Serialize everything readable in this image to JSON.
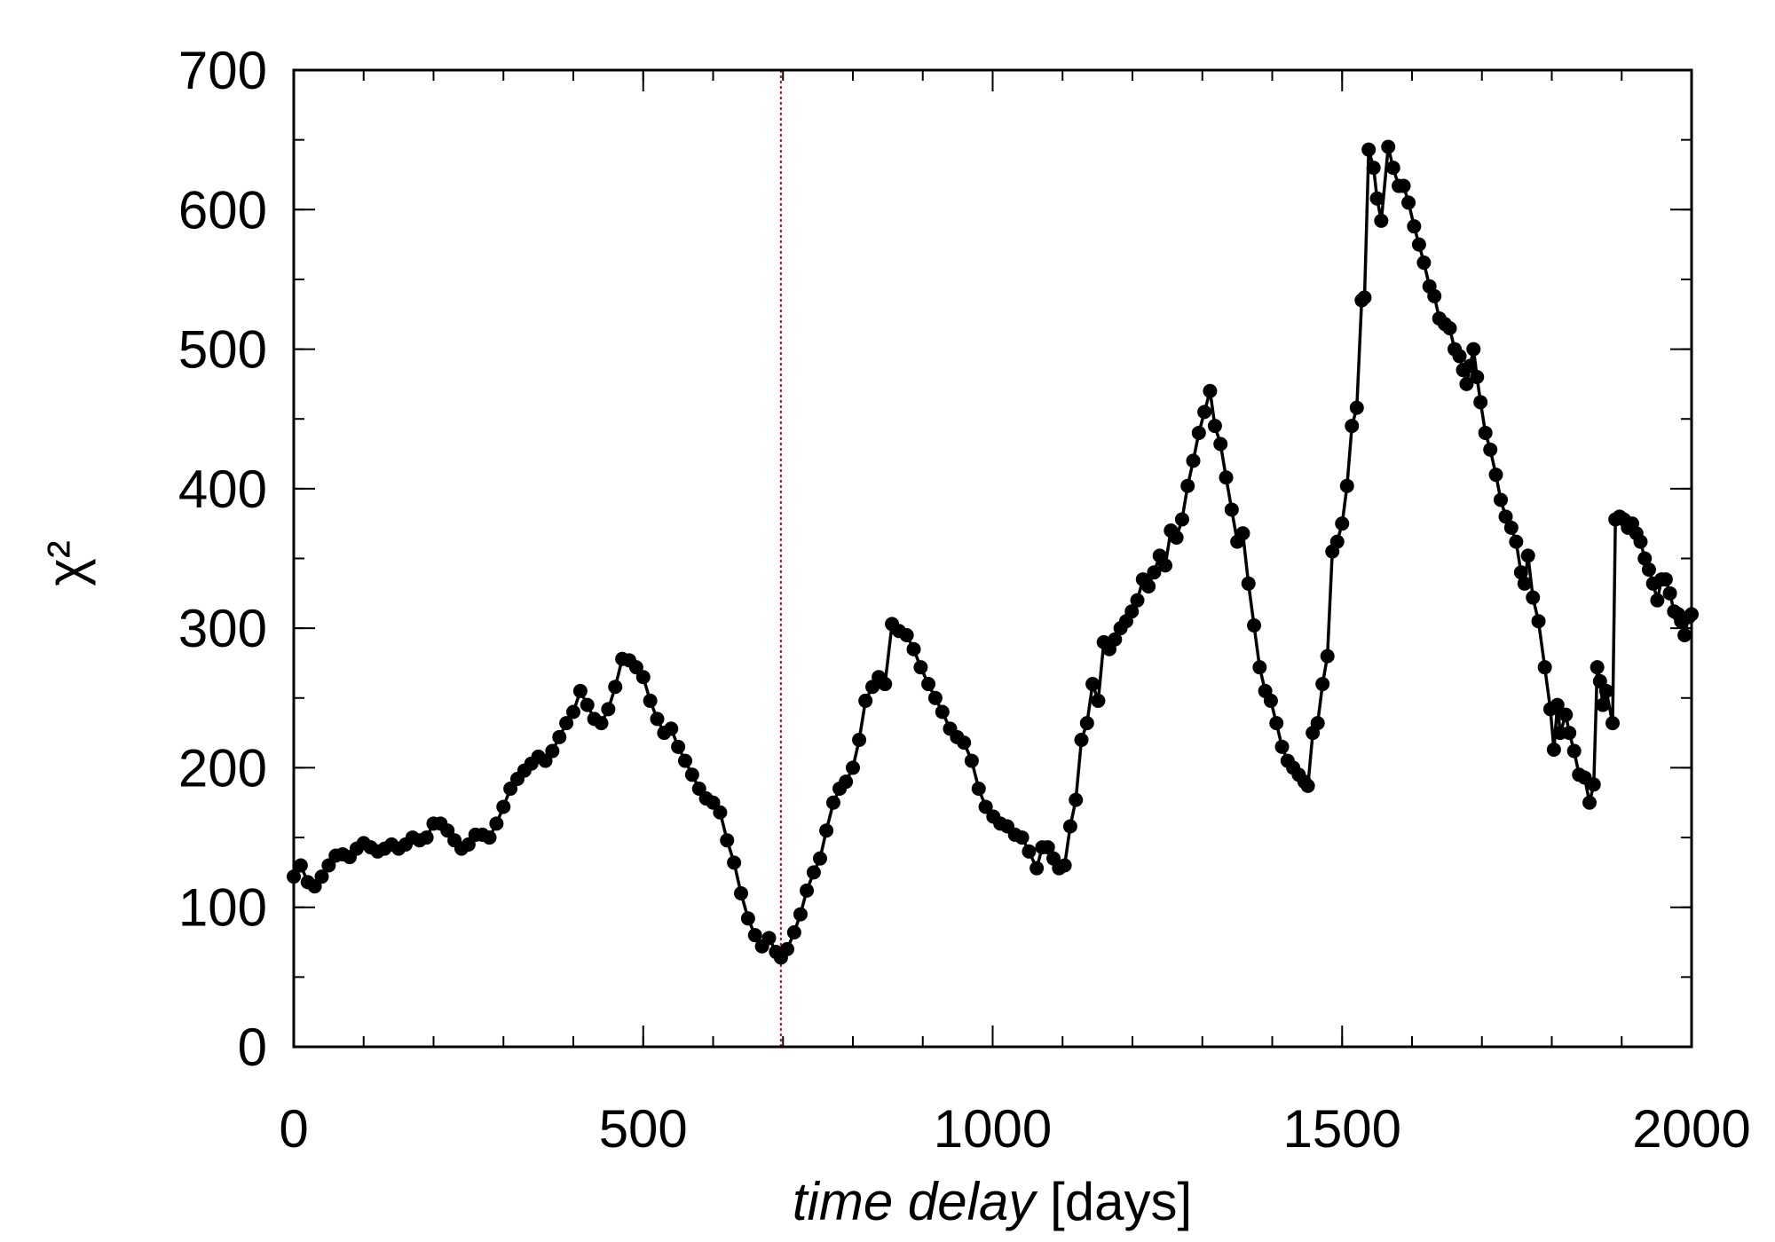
{
  "chart_data": {
    "type": "line",
    "ylabel": "χ²",
    "xlabel": {
      "italic": "time delay",
      "plain": "[days]"
    },
    "color": "#000000",
    "marker": true,
    "vline": {
      "x": 697,
      "color": "#e00000"
    },
    "xlim": [
      0,
      2000
    ],
    "xticks": [
      0,
      500,
      1000,
      1500,
      2000
    ],
    "xminor_step": 100,
    "ylim": [
      0,
      700
    ],
    "yticks": [
      0,
      100,
      200,
      300,
      400,
      500,
      600,
      700
    ],
    "yminor_step": 50,
    "x": [
      0,
      10,
      20,
      30,
      40,
      50,
      60,
      70,
      80,
      90,
      100,
      110,
      120,
      130,
      140,
      150,
      160,
      170,
      180,
      190,
      200,
      210,
      220,
      230,
      240,
      250,
      260,
      270,
      280,
      290,
      300,
      310,
      320,
      330,
      340,
      350,
      360,
      370,
      380,
      390,
      400,
      410,
      420,
      430,
      440,
      450,
      460,
      470,
      480,
      490,
      500,
      510,
      520,
      530,
      540,
      550,
      560,
      570,
      580,
      590,
      600,
      610,
      620,
      630,
      640,
      650,
      660,
      670,
      680,
      690,
      697,
      706,
      716,
      725,
      734,
      744,
      753,
      762,
      772,
      781,
      790,
      800,
      809,
      818,
      828,
      837,
      846,
      856,
      866,
      877,
      887,
      897,
      908,
      918,
      928,
      939,
      949,
      959,
      970,
      980,
      990,
      1001,
      1011,
      1021,
      1032,
      1042,
      1052,
      1063,
      1071,
      1079,
      1087,
      1095,
      1103,
      1111,
      1119,
      1127,
      1135,
      1143,
      1151,
      1159,
      1167,
      1175,
      1183,
      1191,
      1199,
      1207,
      1215,
      1223,
      1231,
      1239,
      1247,
      1255,
      1263,
      1271,
      1279,
      1287,
      1295,
      1303,
      1311,
      1318,
      1326,
      1334,
      1342,
      1350,
      1358,
      1366,
      1374,
      1382,
      1390,
      1398,
      1406,
      1414,
      1422,
      1430,
      1438,
      1446,
      1451,
      1458,
      1465,
      1472,
      1479,
      1486,
      1493,
      1500,
      1507,
      1514,
      1521,
      1528,
      1532,
      1538,
      1545,
      1550,
      1556,
      1566,
      1573,
      1581,
      1588,
      1595,
      1603,
      1610,
      1617,
      1625,
      1632,
      1639,
      1647,
      1654,
      1661,
      1668,
      1673,
      1678,
      1683,
      1688,
      1693,
      1698,
      1705,
      1712,
      1720,
      1727,
      1734,
      1742,
      1749,
      1756,
      1761,
      1766,
      1773,
      1781,
      1790,
      1798,
      1803,
      1808,
      1812,
      1820,
      1825,
      1832,
      1839,
      1847,
      1854,
      1860,
      1865,
      1869,
      1873,
      1878,
      1887,
      1891,
      1897,
      1903,
      1909,
      1915,
      1921,
      1927,
      1933,
      1939,
      1945,
      1951,
      1957,
      1963,
      1969,
      1975,
      1981,
      1985,
      1990,
      1996,
      2000
    ],
    "values": [
      122,
      130,
      118,
      115,
      122,
      130,
      137,
      138,
      136,
      142,
      146,
      143,
      140,
      142,
      145,
      142,
      145,
      150,
      148,
      150,
      160,
      160,
      155,
      148,
      142,
      145,
      152,
      152,
      150,
      160,
      172,
      185,
      192,
      198,
      203,
      208,
      205,
      212,
      222,
      232,
      240,
      255,
      245,
      235,
      232,
      242,
      258,
      278,
      277,
      272,
      265,
      248,
      235,
      225,
      228,
      215,
      205,
      195,
      185,
      178,
      175,
      168,
      148,
      132,
      110,
      92,
      80,
      72,
      78,
      68,
      64,
      70,
      82,
      95,
      112,
      125,
      135,
      155,
      175,
      185,
      190,
      200,
      220,
      248,
      258,
      265,
      260,
      303,
      298,
      295,
      285,
      272,
      260,
      250,
      240,
      228,
      222,
      218,
      205,
      185,
      172,
      165,
      160,
      158,
      152,
      150,
      140,
      128,
      143,
      143,
      135,
      128,
      130,
      158,
      177,
      220,
      232,
      260,
      248,
      290,
      285,
      292,
      300,
      305,
      312,
      320,
      335,
      330,
      340,
      352,
      345,
      370,
      365,
      378,
      402,
      420,
      440,
      455,
      470,
      445,
      432,
      408,
      385,
      362,
      368,
      332,
      302,
      272,
      255,
      248,
      232,
      215,
      205,
      200,
      195,
      190,
      187,
      225,
      232,
      260,
      280,
      355,
      362,
      375,
      402,
      445,
      458,
      535,
      537,
      643,
      630,
      608,
      592,
      645,
      630,
      617,
      617,
      605,
      588,
      575,
      562,
      545,
      538,
      522,
      518,
      515,
      500,
      495,
      485,
      475,
      488,
      500,
      480,
      462,
      440,
      428,
      410,
      392,
      380,
      372,
      362,
      340,
      332,
      352,
      322,
      305,
      272,
      242,
      213,
      245,
      225,
      238,
      225,
      212,
      195,
      193,
      175,
      188,
      272,
      262,
      245,
      255,
      232,
      378,
      380,
      378,
      372,
      375,
      368,
      362,
      350,
      342,
      332,
      320,
      335,
      335,
      325,
      312,
      310,
      305,
      295,
      308,
      310
    ]
  }
}
